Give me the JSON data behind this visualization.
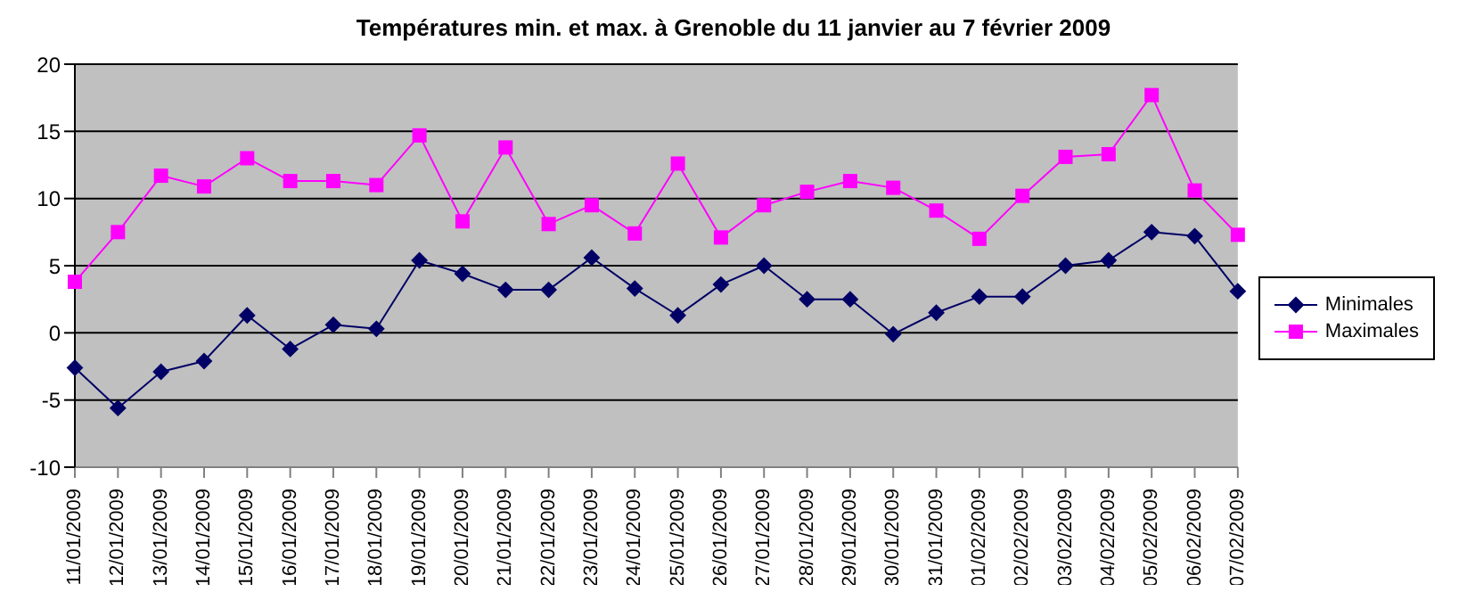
{
  "chart_data": {
    "type": "line",
    "title": "Températures min. et max. à Grenoble du 11 janvier au 7 février 2009",
    "categories": [
      "11/01/2009",
      "12/01/2009",
      "13/01/2009",
      "14/01/2009",
      "15/01/2009",
      "16/01/2009",
      "17/01/2009",
      "18/01/2009",
      "19/01/2009",
      "20/01/2009",
      "21/01/2009",
      "22/01/2009",
      "23/01/2009",
      "24/01/2009",
      "25/01/2009",
      "26/01/2009",
      "27/01/2009",
      "28/01/2009",
      "29/01/2009",
      "30/01/2009",
      "31/01/2009",
      "01/02/2009",
      "02/02/2009",
      "03/02/2009",
      "04/02/2009",
      "05/02/2009",
      "06/02/2009",
      "07/02/2009"
    ],
    "series": [
      {
        "name": "Minimales",
        "color": "#000066",
        "marker": "diamond",
        "values": [
          -2.6,
          -5.6,
          -2.9,
          -2.1,
          1.3,
          -1.2,
          0.6,
          0.3,
          5.4,
          4.4,
          3.2,
          3.2,
          5.6,
          3.3,
          1.3,
          3.6,
          5.0,
          2.5,
          2.5,
          -0.1,
          1.5,
          2.7,
          2.7,
          5.0,
          5.4,
          7.5,
          7.2,
          3.1
        ]
      },
      {
        "name": "Maximales",
        "color": "#ff00ff",
        "marker": "square",
        "values": [
          3.8,
          7.5,
          11.7,
          10.9,
          13.0,
          11.3,
          11.3,
          11.0,
          14.7,
          8.3,
          13.8,
          8.1,
          9.5,
          7.4,
          12.6,
          7.1,
          9.5,
          10.5,
          11.3,
          10.8,
          9.1,
          7.0,
          10.2,
          13.1,
          13.3,
          17.7,
          10.6,
          7.3
        ]
      }
    ],
    "ylim": [
      -10,
      20
    ],
    "yticks": [
      -10,
      -5,
      0,
      5,
      10,
      15,
      20
    ],
    "grid": "y",
    "legend": "right"
  }
}
